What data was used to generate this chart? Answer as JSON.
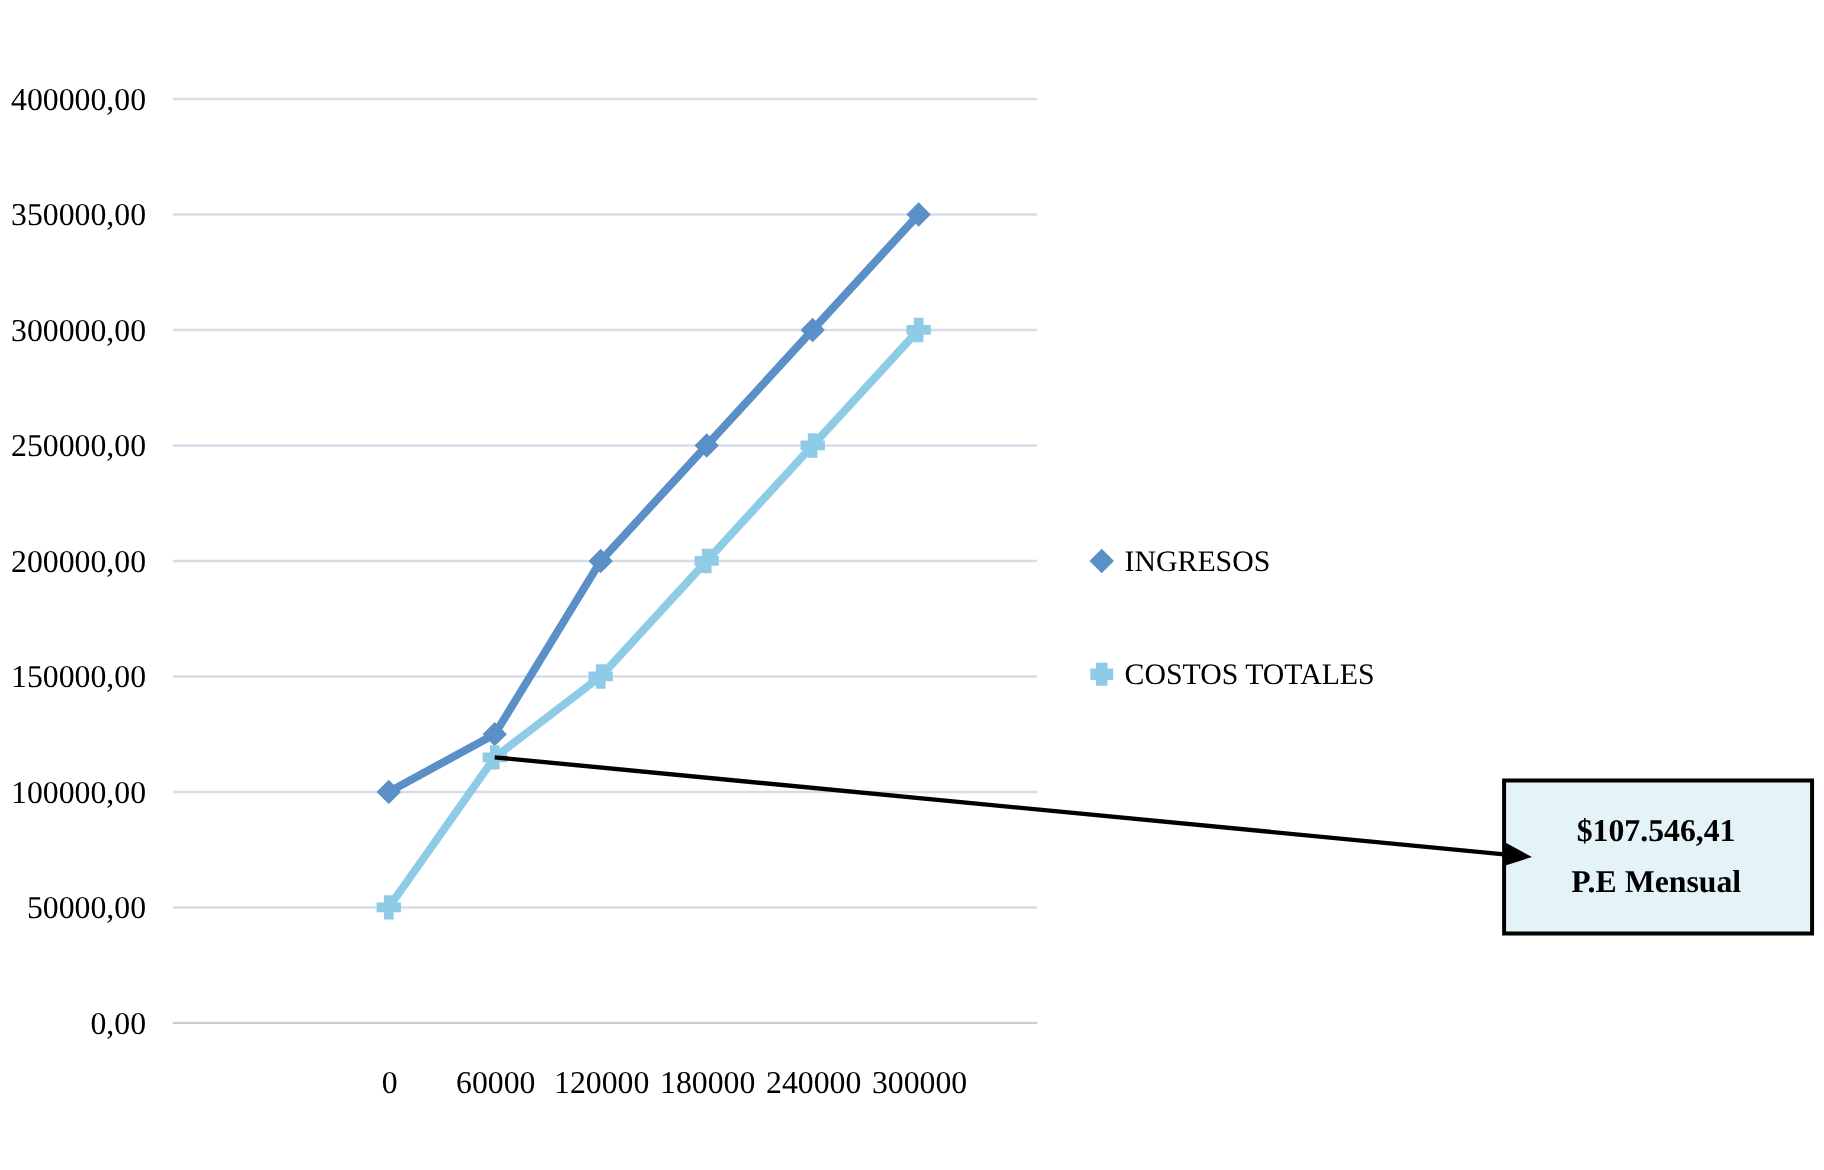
{
  "chart_data": {
    "type": "line",
    "categories": [
      "0",
      "60000",
      "120000",
      "180000",
      "240000",
      "300000"
    ],
    "series": [
      {
        "name": "INGRESOS",
        "color": "#5b8fc7",
        "marker": "diamond",
        "values": [
          100000,
          125000,
          200000,
          250000,
          300000,
          350000
        ]
      },
      {
        "name": "COSTOS TOTALES",
        "color": "#8ecbe6",
        "marker": "cross",
        "values": [
          50000,
          115000,
          150000,
          200000,
          250000,
          300000
        ]
      }
    ],
    "ylim": [
      0,
      400000
    ],
    "yticks": [
      {
        "value": 0,
        "label": "0,00"
      },
      {
        "value": 50000,
        "label": "50000,00"
      },
      {
        "value": 100000,
        "label": "100000,00"
      },
      {
        "value": 150000,
        "label": "150000,00"
      },
      {
        "value": 200000,
        "label": "200000,00"
      },
      {
        "value": 250000,
        "label": "250000,00"
      },
      {
        "value": 300000,
        "label": "300000,00"
      },
      {
        "value": 350000,
        "label": "350000,00"
      },
      {
        "value": 400000,
        "label": "400000,00"
      }
    ],
    "grid": "y",
    "legend": "right",
    "line_style": "solid",
    "annotations": [
      "$107.546,41",
      "P.E Mensual"
    ]
  }
}
